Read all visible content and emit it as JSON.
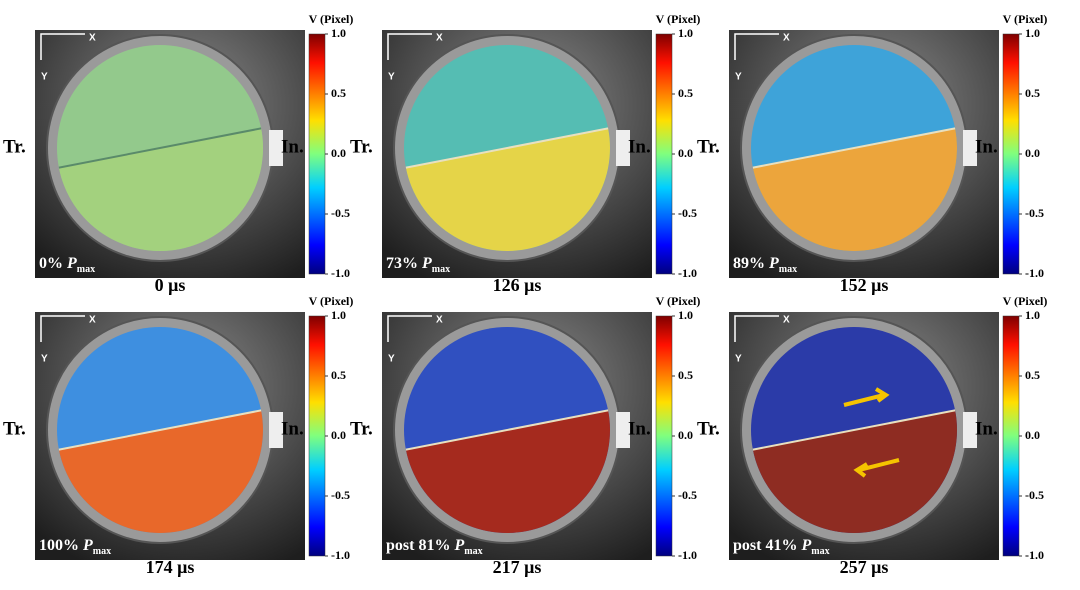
{
  "figure": {
    "labels": {
      "transmitted": "Tr.",
      "incident": "In.",
      "axis_x": "X",
      "axis_y": "Y",
      "load_symbol": "P",
      "load_subscript": "max"
    },
    "colorbar": {
      "title": "V (Pixel)",
      "ticks": [
        {
          "value": 1,
          "label": "1.0"
        },
        {
          "value": 0.5,
          "label": "0.5"
        },
        {
          "value": 0,
          "label": "0.0"
        },
        {
          "value": -0.5,
          "label": "-0.5"
        },
        {
          "value": -1,
          "label": "-1.0"
        }
      ],
      "lim": [
        -1,
        1
      ]
    },
    "panels": [
      {
        "load": "0%",
        "time": "0 μs"
      },
      {
        "load": "73%",
        "time": "126 μs"
      },
      {
        "load": "89%",
        "time": "152 μs"
      },
      {
        "load": "100%",
        "time": "174 μs"
      },
      {
        "load": "post 81%",
        "time": "217 μs"
      },
      {
        "load": "post 41%",
        "time": "257 μs"
      }
    ]
  }
}
